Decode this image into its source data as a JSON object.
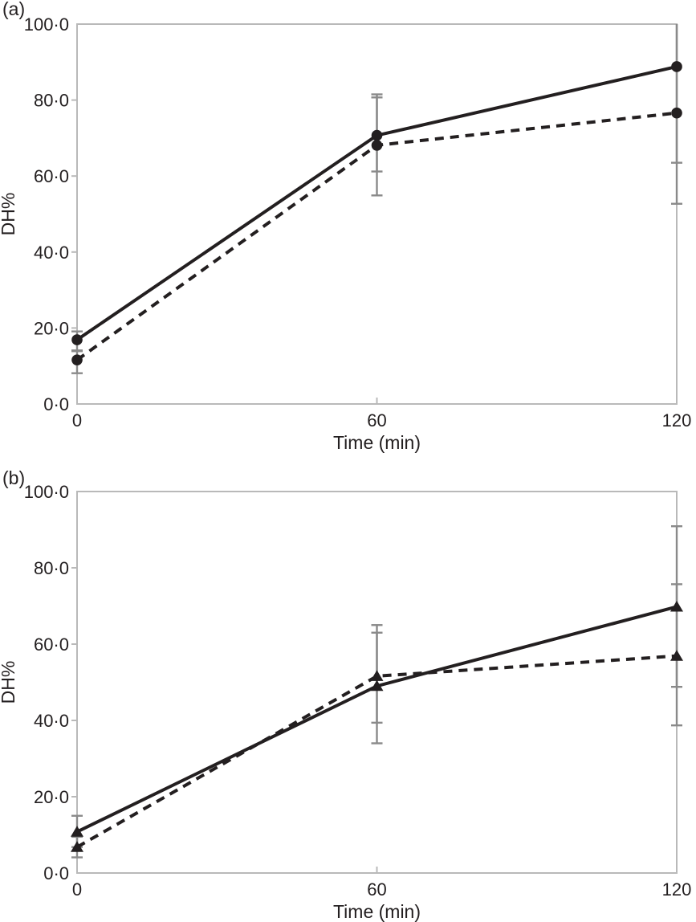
{
  "colors": {
    "background": "#ffffff",
    "line": "#231f20",
    "marker": "#231f20",
    "frame": "#b9b9b9",
    "tick": "#b9b9b9",
    "error_bar": "#8a8a8a",
    "text": "#231f20"
  },
  "chart_data": [
    {
      "id": "a",
      "panel_label": "(a)",
      "type": "line",
      "marker": "circle",
      "x": [
        0,
        60,
        120
      ],
      "xtick_labels": [
        "0",
        "60",
        "120"
      ],
      "xlabel": "Time (min)",
      "ylabel": "DH%",
      "ylim": [
        0,
        100
      ],
      "ytick_values": [
        0,
        20,
        40,
        60,
        80,
        100
      ],
      "ytick_labels": [
        "0·0",
        "20·0",
        "40·0",
        "60·0",
        "80·0",
        "100·0"
      ],
      "grid": false,
      "legend": "none",
      "series": [
        {
          "name": "solid-circle",
          "line_style": "solid",
          "values": [
            16.9,
            70.7,
            88.8
          ],
          "err_lo": [
            3.0,
            9.5,
            25.3
          ],
          "err_hi": [
            2.2,
            10.0,
            25.3
          ]
        },
        {
          "name": "dashed-circle",
          "line_style": "dashed",
          "values": [
            11.6,
            68.1,
            76.6
          ],
          "err_lo": [
            3.5,
            13.2,
            23.9
          ],
          "err_hi": [
            2.5,
            13.4,
            23.9
          ]
        }
      ]
    },
    {
      "id": "b",
      "panel_label": "(b)",
      "type": "line",
      "marker": "triangle",
      "x": [
        0,
        60,
        120
      ],
      "xtick_labels": [
        "0",
        "60",
        "120"
      ],
      "xlabel": "Time (min)",
      "ylabel": "DH%",
      "ylim": [
        0,
        100
      ],
      "ytick_values": [
        0,
        20,
        40,
        60,
        80,
        100
      ],
      "ytick_labels": [
        "0·0",
        "20·0",
        "40·0",
        "60·0",
        "80·0",
        "100·0"
      ],
      "grid": false,
      "legend": "none",
      "series": [
        {
          "name": "solid-triangle",
          "line_style": "solid",
          "values": [
            10.8,
            49.0,
            69.8
          ],
          "err_lo": [
            4.0,
            15.0,
            21.0
          ],
          "err_hi": [
            4.2,
            14.0,
            21.1
          ]
        },
        {
          "name": "dashed-triangle",
          "line_style": "dashed",
          "values": [
            6.8,
            51.6,
            56.9
          ],
          "err_lo": [
            2.7,
            12.2,
            18.2
          ],
          "err_hi": [
            2.7,
            13.4,
            18.8
          ]
        }
      ]
    }
  ]
}
